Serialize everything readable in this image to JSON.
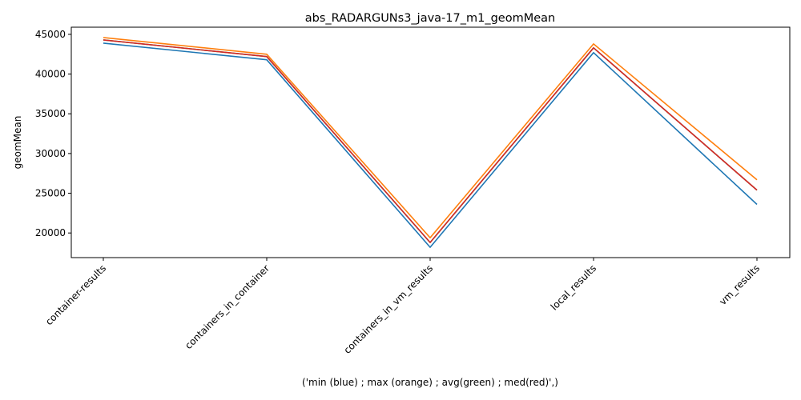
{
  "chart_data": {
    "type": "line",
    "title": "abs_RADARGUNs3_java-17_m1_geomMean",
    "xlabel": "('min (blue) ; max (orange) ; avg(green) ; med(red)',)",
    "ylabel": "geomMean",
    "categories": [
      "container-results",
      "containers_in_container",
      "containers_in_vm_results",
      "local_results",
      "vm_results"
    ],
    "ylim": [
      16900,
      45900
    ],
    "yticks": [
      20000,
      25000,
      30000,
      35000,
      40000,
      45000
    ],
    "grid": false,
    "series": [
      {
        "name": "min",
        "color": "#1f77b4",
        "values": [
          43900,
          41800,
          18200,
          42700,
          23600
        ]
      },
      {
        "name": "avg",
        "color": "#2ca02c",
        "values": [
          44300,
          42200,
          18800,
          43300,
          25400
        ]
      },
      {
        "name": "med",
        "color": "#d62728",
        "values": [
          44300,
          42200,
          18800,
          43300,
          25400
        ]
      },
      {
        "name": "max",
        "color": "#ff7f0e",
        "values": [
          44600,
          42500,
          19400,
          43800,
          26700
        ]
      }
    ]
  }
}
